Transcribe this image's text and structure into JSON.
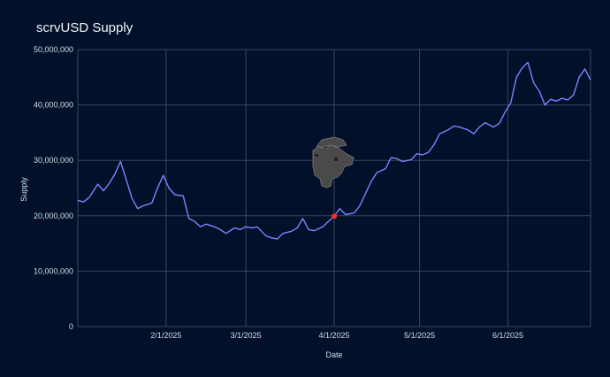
{
  "chart_data": {
    "type": "line",
    "title": "scrvUSD Supply",
    "xlabel": "Date",
    "ylabel": "Supply",
    "ylim": [
      0,
      50000000
    ],
    "yticks": [
      0,
      10000000,
      20000000,
      30000000,
      40000000,
      50000000
    ],
    "ytick_labels": [
      "0",
      "10,000,000",
      "20,000,000",
      "30,000,000",
      "40,000,000",
      "50,000,000"
    ],
    "xlim": [
      "2025-01-01",
      "2025-06-30"
    ],
    "xticks": [
      "2025-02-01",
      "2025-03-01",
      "2025-04-01",
      "2025-05-01",
      "2025-06-01"
    ],
    "xtick_labels": [
      "2/1/2025",
      "3/1/2025",
      "4/1/2025",
      "5/1/2025",
      "6/1/2025"
    ],
    "grid": true,
    "colors": {
      "background": "#02102a",
      "line": "#7b86ff",
      "highlight": "#ff2a2a",
      "grid": "#3a4660"
    },
    "highlight_point": {
      "x": "2025-04-01",
      "y": 19900000
    },
    "watermark": "llama-logo",
    "x": [
      "2025-01-01",
      "2025-01-03",
      "2025-01-05",
      "2025-01-08",
      "2025-01-10",
      "2025-01-12",
      "2025-01-14",
      "2025-01-16",
      "2025-01-18",
      "2025-01-20",
      "2025-01-22",
      "2025-01-24",
      "2025-01-27",
      "2025-01-29",
      "2025-01-31",
      "2025-02-02",
      "2025-02-04",
      "2025-02-07",
      "2025-02-09",
      "2025-02-11",
      "2025-02-13",
      "2025-02-15",
      "2025-02-18",
      "2025-02-20",
      "2025-02-22",
      "2025-02-25",
      "2025-02-27",
      "2025-03-01",
      "2025-03-03",
      "2025-03-05",
      "2025-03-08",
      "2025-03-10",
      "2025-03-12",
      "2025-03-14",
      "2025-03-17",
      "2025-03-19",
      "2025-03-21",
      "2025-03-23",
      "2025-03-25",
      "2025-03-28",
      "2025-03-30",
      "2025-04-01",
      "2025-04-03",
      "2025-04-05",
      "2025-04-08",
      "2025-04-10",
      "2025-04-12",
      "2025-04-14",
      "2025-04-16",
      "2025-04-19",
      "2025-04-21",
      "2025-04-23",
      "2025-04-25",
      "2025-04-28",
      "2025-04-30",
      "2025-05-02",
      "2025-05-04",
      "2025-05-06",
      "2025-05-08",
      "2025-05-11",
      "2025-05-13",
      "2025-05-15",
      "2025-05-18",
      "2025-05-20",
      "2025-05-22",
      "2025-05-24",
      "2025-05-27",
      "2025-05-29",
      "2025-05-31",
      "2025-06-02",
      "2025-06-04",
      "2025-06-06",
      "2025-06-08",
      "2025-06-10",
      "2025-06-12",
      "2025-06-14",
      "2025-06-16",
      "2025-06-18",
      "2025-06-20",
      "2025-06-22",
      "2025-06-24",
      "2025-06-26",
      "2025-06-28",
      "2025-06-30"
    ],
    "series": [
      {
        "values": [
          22800000,
          22500000,
          23300000,
          25700000,
          24500000,
          25800000,
          27500000,
          29800000,
          26500000,
          23200000,
          21300000,
          21800000,
          22300000,
          25000000,
          27300000,
          25000000,
          23800000,
          23600000,
          19500000,
          19000000,
          18000000,
          18500000,
          18000000,
          17500000,
          16800000,
          17800000,
          17500000,
          18000000,
          17800000,
          18000000,
          16400000,
          16000000,
          15800000,
          16800000,
          17200000,
          17800000,
          19500000,
          17500000,
          17300000,
          18000000,
          19000000,
          19900000,
          21300000,
          20200000,
          20500000,
          21800000,
          24000000,
          26200000,
          27800000,
          28500000,
          30500000,
          30300000,
          29800000,
          30100000,
          31200000,
          31000000,
          31400000,
          32800000,
          34800000,
          35500000,
          36200000,
          36000000,
          35500000,
          34800000,
          36000000,
          36800000,
          36000000,
          36700000,
          38700000,
          40400000,
          45000000,
          46700000,
          47700000,
          44000000,
          42500000,
          40000000,
          41000000,
          40700000,
          41200000,
          40900000,
          41800000,
          45000000,
          46500000,
          44500000
        ]
      }
    ]
  }
}
